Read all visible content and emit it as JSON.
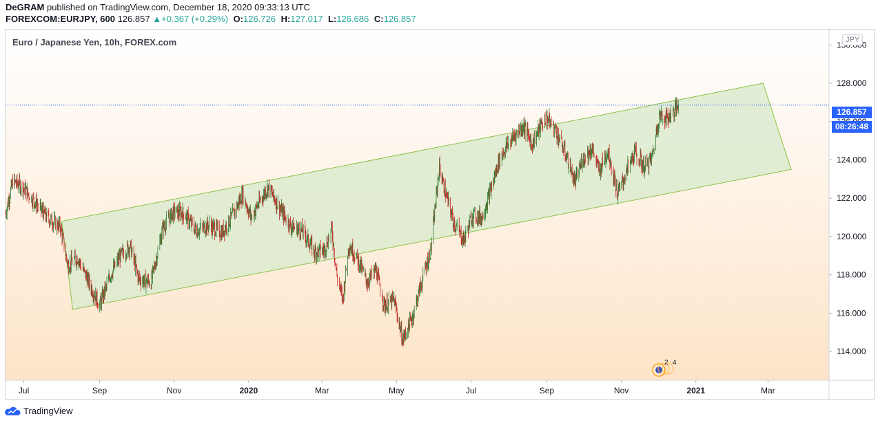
{
  "header": {
    "author": "DeGRAM",
    "published_text": "published on TradingView.com, December 18, 2020 09:33:13 UTC",
    "symbol": "FOREXCOM:EURJPY, 600",
    "last": "126.857",
    "change": "+0.367 (+0.29%)",
    "open_label": "O:",
    "open": "126.726",
    "high_label": "H:",
    "high": "127.017",
    "low_label": "L:",
    "low": "126.686",
    "close_label": "C:",
    "close": "126.857"
  },
  "chart": {
    "title": "Euro / Japanese Yen, 10h, FOREX.com",
    "currency": "JPY",
    "price_label": "126.857",
    "countdown_label": "08:26:48",
    "events_badge": "2 4"
  },
  "footer": {
    "brand": "TradingView"
  },
  "colors": {
    "up": "#26a69a",
    "down": "#ef5350",
    "bar_up": "#2e7d32",
    "bar_down": "#c62828",
    "channel_fill": "#dcebcf",
    "channel_stroke": "#8bc34a",
    "accent": "#2962ff"
  },
  "chart_data": {
    "type": "candlestick",
    "ylim": [
      112.5,
      130.8
    ],
    "y_ticks": [
      "114.000",
      "116.000",
      "118.000",
      "120.000",
      "122.000",
      "124.000",
      "126.000",
      "128.000",
      "130.000"
    ],
    "y_tick_values": [
      114,
      116,
      118,
      120,
      122,
      124,
      126,
      128,
      130
    ],
    "x_ticks": [
      "Jul",
      "Sep",
      "Nov",
      "2020",
      "Mar",
      "May",
      "Jul",
      "Sep",
      "Nov",
      "2021",
      "Mar"
    ],
    "x_tick_dates": [
      "2019-07-01",
      "2019-09-01",
      "2019-11-01",
      "2020-01-01",
      "2020-03-01",
      "2020-05-01",
      "2020-07-01",
      "2020-09-01",
      "2020-11-01",
      "2021-01-01",
      "2021-03-01"
    ],
    "date_range": [
      "2019-06-16",
      "2021-04-20"
    ],
    "series_anchors": [
      [
        "2019-06-16",
        121.2
      ],
      [
        "2019-06-22",
        122.9
      ],
      [
        "2019-06-30",
        122.6
      ],
      [
        "2019-07-10",
        121.8
      ],
      [
        "2019-07-20",
        121.0
      ],
      [
        "2019-07-31",
        120.5
      ],
      [
        "2019-08-06",
        118.5
      ],
      [
        "2019-08-14",
        118.9
      ],
      [
        "2019-08-24",
        117.5
      ],
      [
        "2019-09-01",
        116.4
      ],
      [
        "2019-09-10",
        118.0
      ],
      [
        "2019-09-18",
        119.0
      ],
      [
        "2019-09-26",
        119.5
      ],
      [
        "2019-10-03",
        117.8
      ],
      [
        "2019-10-13",
        117.6
      ],
      [
        "2019-10-23",
        120.5
      ],
      [
        "2019-11-01",
        121.3
      ],
      [
        "2019-11-09",
        121.2
      ],
      [
        "2019-11-19",
        120.3
      ],
      [
        "2019-11-29",
        120.6
      ],
      [
        "2019-12-10",
        120.2
      ],
      [
        "2019-12-18",
        121.0
      ],
      [
        "2019-12-27",
        122.2
      ],
      [
        "2020-01-03",
        121.0
      ],
      [
        "2020-01-09",
        121.7
      ],
      [
        "2020-01-17",
        122.6
      ],
      [
        "2020-01-27",
        121.4
      ],
      [
        "2020-02-05",
        120.5
      ],
      [
        "2020-02-14",
        120.3
      ],
      [
        "2020-02-24",
        119.2
      ],
      [
        "2020-03-03",
        119.3
      ],
      [
        "2020-03-09",
        120.4
      ],
      [
        "2020-03-13",
        118.0
      ],
      [
        "2020-03-18",
        116.7
      ],
      [
        "2020-03-23",
        119.6
      ],
      [
        "2020-03-31",
        118.7
      ],
      [
        "2020-04-07",
        117.6
      ],
      [
        "2020-04-14",
        118.3
      ],
      [
        "2020-04-21",
        116.4
      ],
      [
        "2020-04-29",
        116.7
      ],
      [
        "2020-05-06",
        114.6
      ],
      [
        "2020-05-14",
        115.8
      ],
      [
        "2020-05-21",
        117.5
      ],
      [
        "2020-05-29",
        119.3
      ],
      [
        "2020-06-05",
        123.6
      ],
      [
        "2020-06-10",
        122.3
      ],
      [
        "2020-06-17",
        120.7
      ],
      [
        "2020-06-25",
        119.8
      ],
      [
        "2020-07-02",
        121.1
      ],
      [
        "2020-07-10",
        121.0
      ],
      [
        "2020-07-18",
        122.6
      ],
      [
        "2020-07-24",
        124.0
      ],
      [
        "2020-07-31",
        124.8
      ],
      [
        "2020-08-06",
        125.3
      ],
      [
        "2020-08-13",
        125.8
      ],
      [
        "2020-08-20",
        124.8
      ],
      [
        "2020-08-27",
        125.8
      ],
      [
        "2020-09-01",
        126.2
      ],
      [
        "2020-09-08",
        125.6
      ],
      [
        "2020-09-17",
        124.2
      ],
      [
        "2020-09-24",
        122.8
      ],
      [
        "2020-09-30",
        124.0
      ],
      [
        "2020-10-08",
        124.6
      ],
      [
        "2020-10-14",
        123.4
      ],
      [
        "2020-10-21",
        124.5
      ],
      [
        "2020-10-29",
        122.2
      ],
      [
        "2020-11-06",
        123.5
      ],
      [
        "2020-11-12",
        124.4
      ],
      [
        "2020-11-20",
        123.6
      ],
      [
        "2020-11-26",
        124.1
      ],
      [
        "2020-12-02",
        126.3
      ],
      [
        "2020-12-09",
        126.2
      ],
      [
        "2020-12-18",
        126.857
      ]
    ],
    "channel": {
      "upper": [
        [
          "2019-08-01",
          120.8
        ],
        [
          "2021-02-25",
          128.0
        ]
      ],
      "lower": [
        [
          "2019-08-10",
          116.2
        ],
        [
          "2021-03-20",
          123.5
        ]
      ]
    },
    "last_price": 126.857
  }
}
